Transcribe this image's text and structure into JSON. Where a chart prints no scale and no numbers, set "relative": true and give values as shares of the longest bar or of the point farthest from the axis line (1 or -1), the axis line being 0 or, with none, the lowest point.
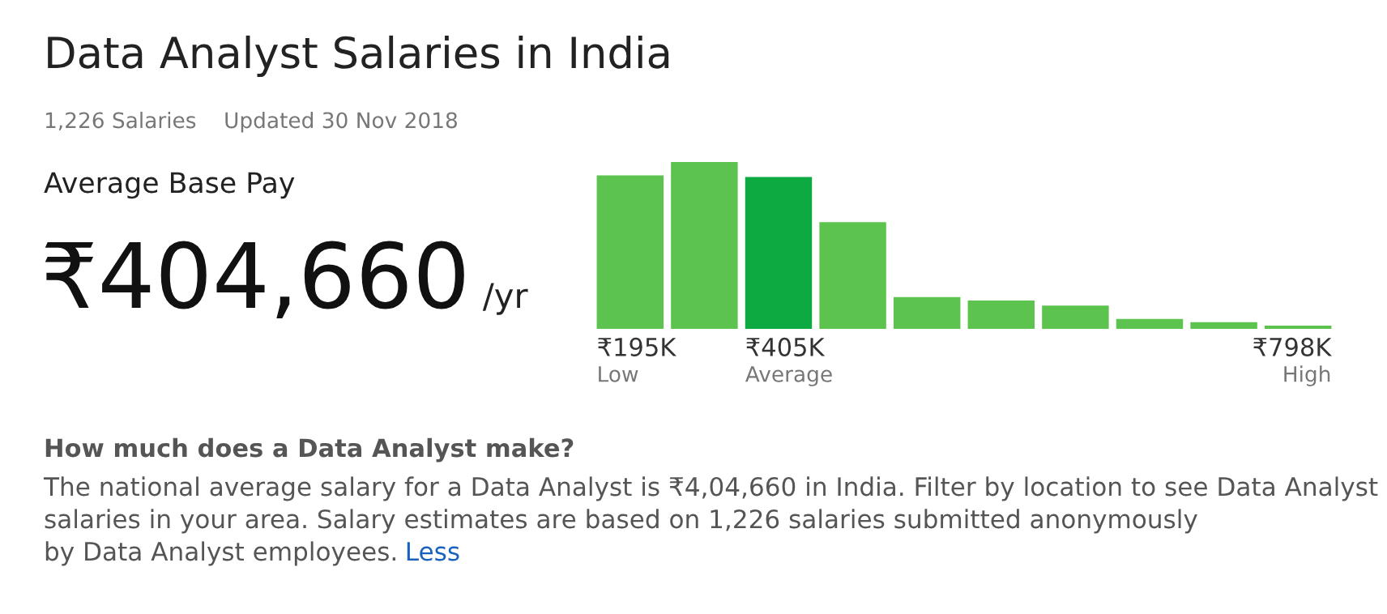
{
  "chart_data": {
    "type": "bar",
    "relative": true,
    "title": "Data Analyst Salaries in India",
    "subtitle": "1,226 Salaries    Updated 30 Nov 2018",
    "categories": [
      "₹195K",
      null,
      "₹405K",
      null,
      null,
      null,
      null,
      null,
      null,
      "₹798K"
    ],
    "values": [
      0.92,
      1,
      0.91,
      0.64,
      0.19,
      0.17,
      0.14,
      0.06,
      0.04,
      0.02
    ],
    "colors": [
      "#5cc44e",
      "#5cc44e",
      "#0caa41",
      "#5cc44e",
      "#5cc44e",
      "#5cc44e",
      "#5cc44e",
      "#5cc44e",
      "#5cc44e",
      "#5cc44e"
    ],
    "annotations": [
      "Low",
      "Average",
      "High",
      "Average Base Pay",
      "₹404,660",
      "/yr",
      "How much does a Data Analyst make?",
      "The national average salary for a Data Analyst is ₹4,04,660 in India. Filter by location to see Data Analyst",
      "salaries in your area. Salary estimates are based on 1,226 salaries submitted anonymously",
      "by Data Analyst employees.",
      "Less"
    ]
  }
}
